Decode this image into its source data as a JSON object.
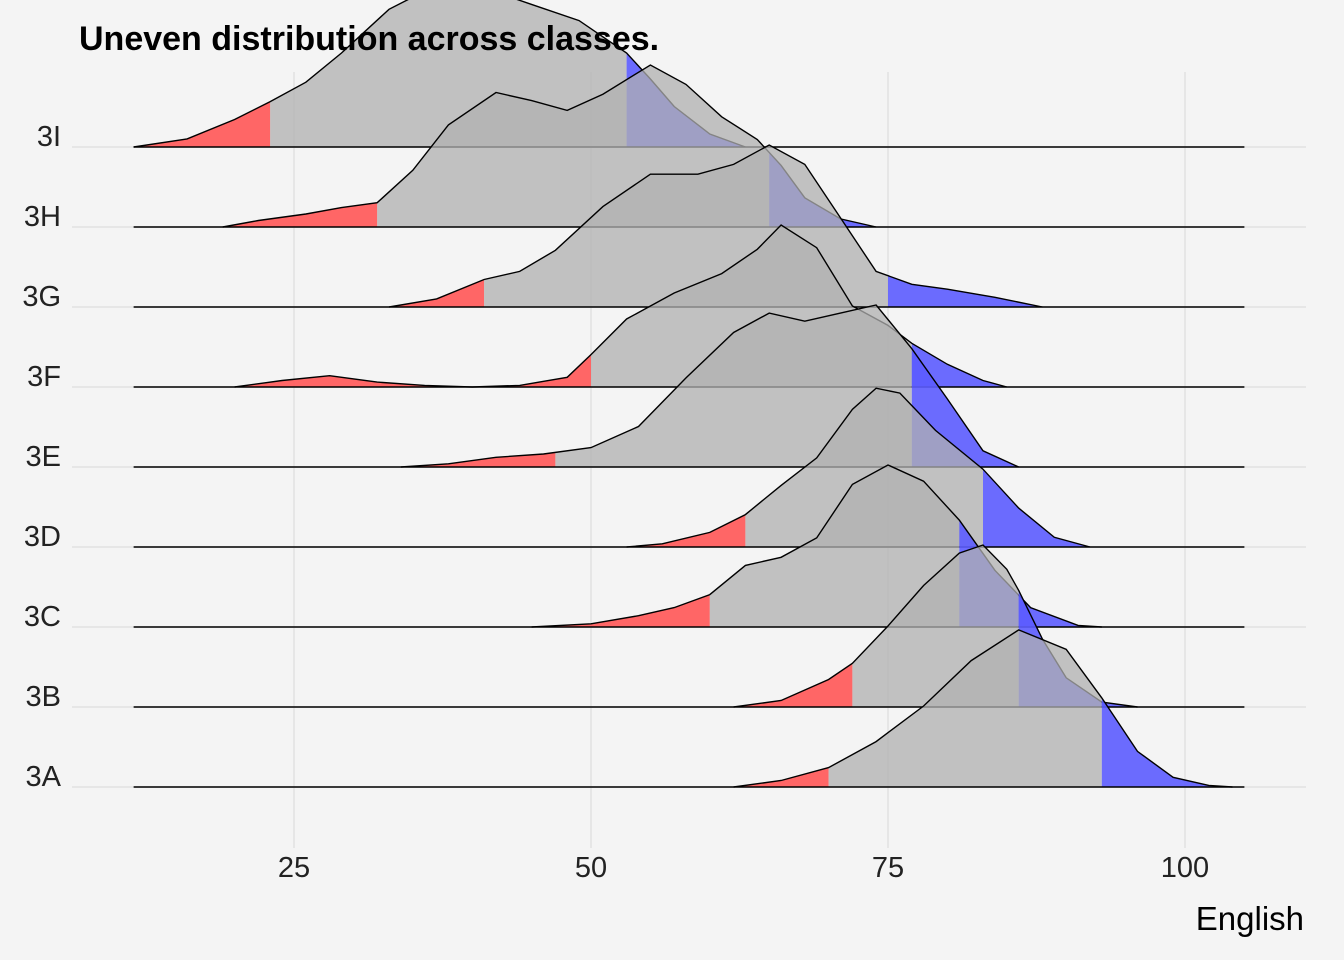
{
  "chart_data": {
    "type": "ridgeline",
    "title": "Uneven distribution across classes.",
    "xlabel": "English",
    "ylabel": "",
    "x_ticks": [
      25,
      50,
      75,
      100
    ],
    "xlim": [
      11.5,
      105
    ],
    "grid": true,
    "colors": {
      "body": "#b0b0b0",
      "lower_tail": "#ff5e5e",
      "upper_tail": "#5c5cff",
      "background": "#f4f4f4"
    },
    "classes": [
      {
        "name": "3A",
        "lower_cut": 70,
        "upper_cut": 93,
        "density": [
          [
            62,
            0
          ],
          [
            66,
            0.04
          ],
          [
            70,
            0.12
          ],
          [
            74,
            0.28
          ],
          [
            78,
            0.5
          ],
          [
            82,
            0.78
          ],
          [
            86,
            0.97
          ],
          [
            90,
            0.85
          ],
          [
            93,
            0.55
          ],
          [
            96,
            0.22
          ],
          [
            99,
            0.06
          ],
          [
            102,
            0.01
          ],
          [
            104,
            0
          ]
        ]
      },
      {
        "name": "3B",
        "lower_cut": 72,
        "upper_cut": 86,
        "density": [
          [
            62,
            0
          ],
          [
            66,
            0.04
          ],
          [
            70,
            0.17
          ],
          [
            72,
            0.27
          ],
          [
            75,
            0.5
          ],
          [
            78,
            0.75
          ],
          [
            81,
            0.95
          ],
          [
            83,
            1.0
          ],
          [
            85,
            0.85
          ],
          [
            86,
            0.72
          ],
          [
            88,
            0.42
          ],
          [
            90,
            0.18
          ],
          [
            93,
            0.03
          ],
          [
            96,
            0
          ]
        ]
      },
      {
        "name": "3C",
        "lower_cut": 60,
        "upper_cut": 81,
        "density": [
          [
            45,
            0
          ],
          [
            50,
            0.02
          ],
          [
            54,
            0.07
          ],
          [
            57,
            0.12
          ],
          [
            60,
            0.2
          ],
          [
            63,
            0.38
          ],
          [
            66,
            0.43
          ],
          [
            69,
            0.55
          ],
          [
            72,
            0.88
          ],
          [
            75,
            1.0
          ],
          [
            78,
            0.9
          ],
          [
            81,
            0.66
          ],
          [
            84,
            0.35
          ],
          [
            87,
            0.12
          ],
          [
            91,
            0.01
          ],
          [
            93,
            0
          ]
        ]
      },
      {
        "name": "3D",
        "lower_cut": 63,
        "upper_cut": 83,
        "density": [
          [
            53,
            0
          ],
          [
            56,
            0.02
          ],
          [
            60,
            0.09
          ],
          [
            63,
            0.2
          ],
          [
            66,
            0.38
          ],
          [
            69,
            0.55
          ],
          [
            72,
            0.85
          ],
          [
            74,
            0.98
          ],
          [
            76,
            0.95
          ],
          [
            79,
            0.72
          ],
          [
            83,
            0.48
          ],
          [
            86,
            0.24
          ],
          [
            89,
            0.06
          ],
          [
            92,
            0
          ]
        ]
      },
      {
        "name": "3E",
        "lower_cut": 47,
        "upper_cut": 77,
        "density": [
          [
            34,
            0
          ],
          [
            38,
            0.02
          ],
          [
            42,
            0.06
          ],
          [
            46,
            0.08
          ],
          [
            50,
            0.12
          ],
          [
            54,
            0.25
          ],
          [
            58,
            0.55
          ],
          [
            62,
            0.83
          ],
          [
            65,
            0.95
          ],
          [
            68,
            0.9
          ],
          [
            71,
            0.95
          ],
          [
            74,
            1.0
          ],
          [
            77,
            0.73
          ],
          [
            80,
            0.42
          ],
          [
            83,
            0.1
          ],
          [
            86,
            0
          ]
        ]
      },
      {
        "name": "3F",
        "lower_cut": 50,
        "upper_cut": 77,
        "density": [
          [
            20,
            0
          ],
          [
            24,
            0.04
          ],
          [
            28,
            0.07
          ],
          [
            32,
            0.03
          ],
          [
            36,
            0.01
          ],
          [
            40,
            0
          ],
          [
            44,
            0.01
          ],
          [
            48,
            0.06
          ],
          [
            50,
            0.2
          ],
          [
            53,
            0.42
          ],
          [
            57,
            0.58
          ],
          [
            61,
            0.7
          ],
          [
            64,
            0.85
          ],
          [
            66,
            1.0
          ],
          [
            69,
            0.86
          ],
          [
            72,
            0.5
          ],
          [
            75,
            0.38
          ],
          [
            77,
            0.27
          ],
          [
            80,
            0.14
          ],
          [
            83,
            0.04
          ],
          [
            85,
            0
          ]
        ]
      },
      {
        "name": "3G",
        "lower_cut": 41,
        "upper_cut": 75,
        "density": [
          [
            33,
            0
          ],
          [
            37,
            0.05
          ],
          [
            41,
            0.17
          ],
          [
            44,
            0.22
          ],
          [
            47,
            0.35
          ],
          [
            51,
            0.62
          ],
          [
            55,
            0.82
          ],
          [
            59,
            0.82
          ],
          [
            62,
            0.88
          ],
          [
            65,
            1.0
          ],
          [
            68,
            0.88
          ],
          [
            71,
            0.55
          ],
          [
            74,
            0.22
          ],
          [
            77,
            0.14
          ],
          [
            80,
            0.11
          ],
          [
            84,
            0.06
          ],
          [
            88,
            0
          ]
        ]
      },
      {
        "name": "3H",
        "lower_cut": 32,
        "upper_cut": 65,
        "density": [
          [
            19,
            0
          ],
          [
            22,
            0.04
          ],
          [
            26,
            0.08
          ],
          [
            29,
            0.12
          ],
          [
            32,
            0.15
          ],
          [
            35,
            0.35
          ],
          [
            38,
            0.63
          ],
          [
            42,
            0.83
          ],
          [
            45,
            0.78
          ],
          [
            48,
            0.72
          ],
          [
            51,
            0.82
          ],
          [
            55,
            1.0
          ],
          [
            58,
            0.88
          ],
          [
            61,
            0.68
          ],
          [
            64,
            0.54
          ],
          [
            66,
            0.38
          ],
          [
            68,
            0.18
          ],
          [
            71,
            0.05
          ],
          [
            74,
            0
          ]
        ]
      },
      {
        "name": "3I",
        "lower_cut": 23,
        "upper_cut": 53,
        "density": [
          [
            11.5,
            0
          ],
          [
            16,
            0.05
          ],
          [
            20,
            0.17
          ],
          [
            23,
            0.28
          ],
          [
            26,
            0.4
          ],
          [
            29,
            0.58
          ],
          [
            33,
            0.85
          ],
          [
            37,
            1.0
          ],
          [
            41,
            0.98
          ],
          [
            45,
            0.88
          ],
          [
            49,
            0.78
          ],
          [
            53,
            0.58
          ],
          [
            55,
            0.42
          ],
          [
            57,
            0.25
          ],
          [
            60,
            0.08
          ],
          [
            63,
            0
          ]
        ]
      }
    ]
  }
}
